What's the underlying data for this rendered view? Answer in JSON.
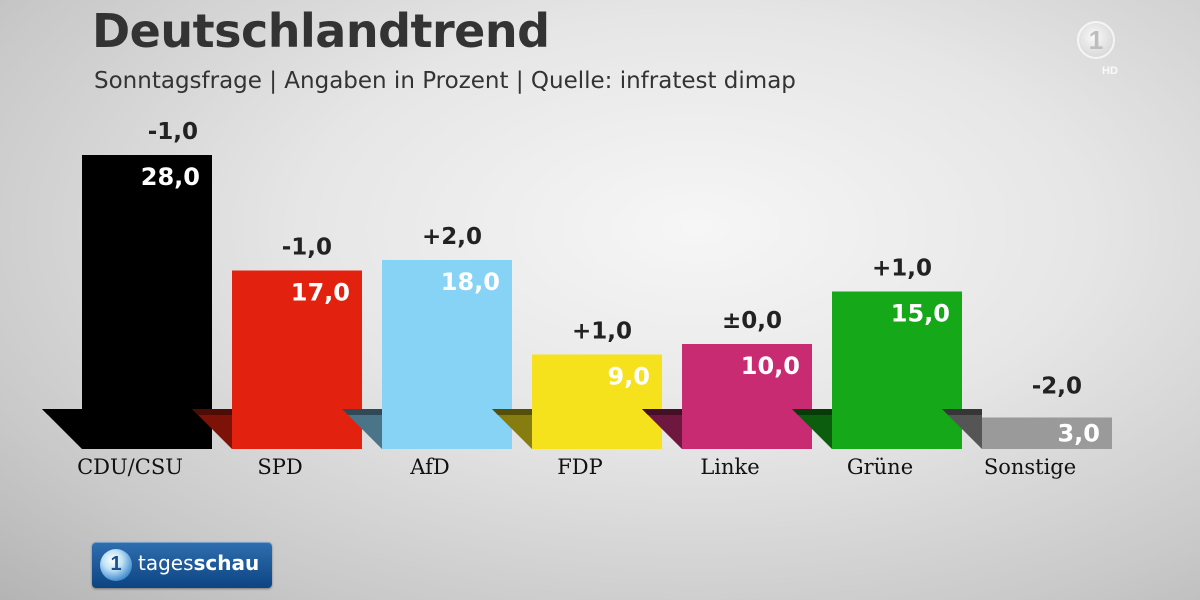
{
  "header": {
    "title": "Deutschlandtrend",
    "subtitle": "Sonntagsfrage | Angaben in Prozent | Quelle: infratest dimap"
  },
  "logos": {
    "broadcaster": {
      "glyph": "1",
      "badge": "HD"
    },
    "program": {
      "icon_glyph": "1",
      "name_part1": "tages",
      "name_part2": "schau"
    }
  },
  "chart_data": {
    "type": "bar",
    "title": "Deutschlandtrend",
    "subtitle": "Sonntagsfrage | Angaben in Prozent | Quelle: infratest dimap",
    "unit": "Prozent",
    "categories": [
      "CDU/CSU",
      "SPD",
      "AfD",
      "FDP",
      "Linke",
      "Grüne",
      "Sonstige"
    ],
    "values": [
      28.0,
      17.0,
      18.0,
      9.0,
      10.0,
      15.0,
      3.0
    ],
    "value_labels": [
      "28,0",
      "17,0",
      "18,0",
      "9,0",
      "10,0",
      "15,0",
      "3,0"
    ],
    "changes": [
      -1.0,
      -1.0,
      2.0,
      1.0,
      0.0,
      1.0,
      -2.0
    ],
    "change_labels": [
      "-1,0",
      "-1,0",
      "+2,0",
      "+1,0",
      "±0,0",
      "+1,0",
      "-2,0"
    ],
    "colors": [
      "#000000",
      "#e3210f",
      "#86d3f5",
      "#f5e21c",
      "#c92b72",
      "#15a91a",
      "#9a9a9a"
    ],
    "ylim": [
      0,
      28
    ],
    "grid": false,
    "legend": "none"
  }
}
